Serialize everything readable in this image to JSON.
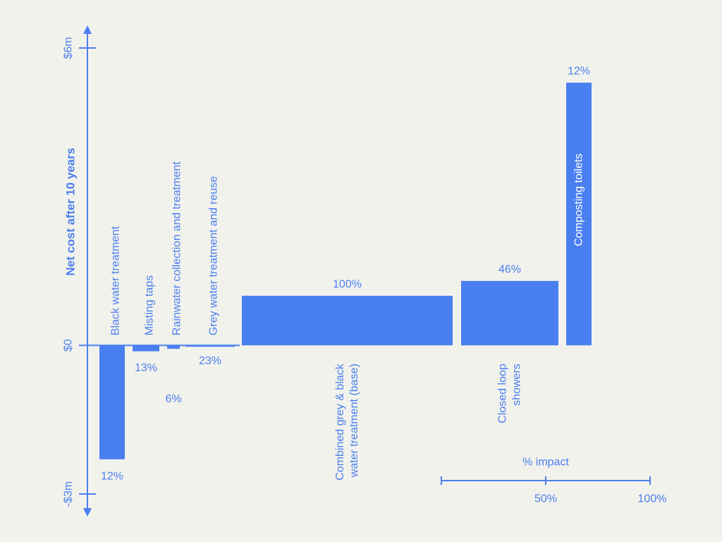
{
  "colors": {
    "primary": "#4a7ff0",
    "background": "#f2f2ec"
  },
  "chart_data": {
    "type": "bar",
    "variant": "variable-width bar chart (bar width = % impact)",
    "ylabel": "Net cost after 10 years",
    "ylim": [
      -3,
      6
    ],
    "y_unit": "$m",
    "yticks": [
      {
        "value": 6,
        "label": "$6m"
      },
      {
        "value": 0,
        "label": "$0"
      },
      {
        "value": -3,
        "label": "-$3m"
      }
    ],
    "width_scale": {
      "title": "% impact",
      "ticks": [
        {
          "value": 50,
          "label": "50%"
        },
        {
          "value": 100,
          "label": "100%"
        }
      ]
    },
    "bars": [
      {
        "name": "Black water treatment",
        "value": -2.3,
        "impact": 12,
        "impact_label": "12%",
        "name_position": "above"
      },
      {
        "name": "Misting taps",
        "value": -0.12,
        "impact": 13,
        "impact_label": "13%",
        "name_position": "above"
      },
      {
        "name": "Rainwater collection and treatment",
        "value": -0.07,
        "impact": 6,
        "impact_label": "6%",
        "name_position": "above"
      },
      {
        "name": "Grey water treatment and reuse",
        "value": -0.01,
        "impact": 23,
        "impact_label": "23%",
        "name_position": "above"
      },
      {
        "name": "Combined grey & black water treatment (base)",
        "name_lines": [
          "Combined grey & black",
          "water treatment (base)"
        ],
        "value": 1.0,
        "impact": 100,
        "impact_label": "100%",
        "name_position": "below"
      },
      {
        "name": "Closed loop showers",
        "name_lines": [
          "Closed loop",
          "showers"
        ],
        "value": 1.3,
        "impact": 46,
        "impact_label": "46%",
        "name_position": "below"
      },
      {
        "name": "Composting toilets",
        "value": 5.3,
        "impact": 12,
        "impact_label": "12%",
        "name_position": "inside"
      }
    ]
  }
}
